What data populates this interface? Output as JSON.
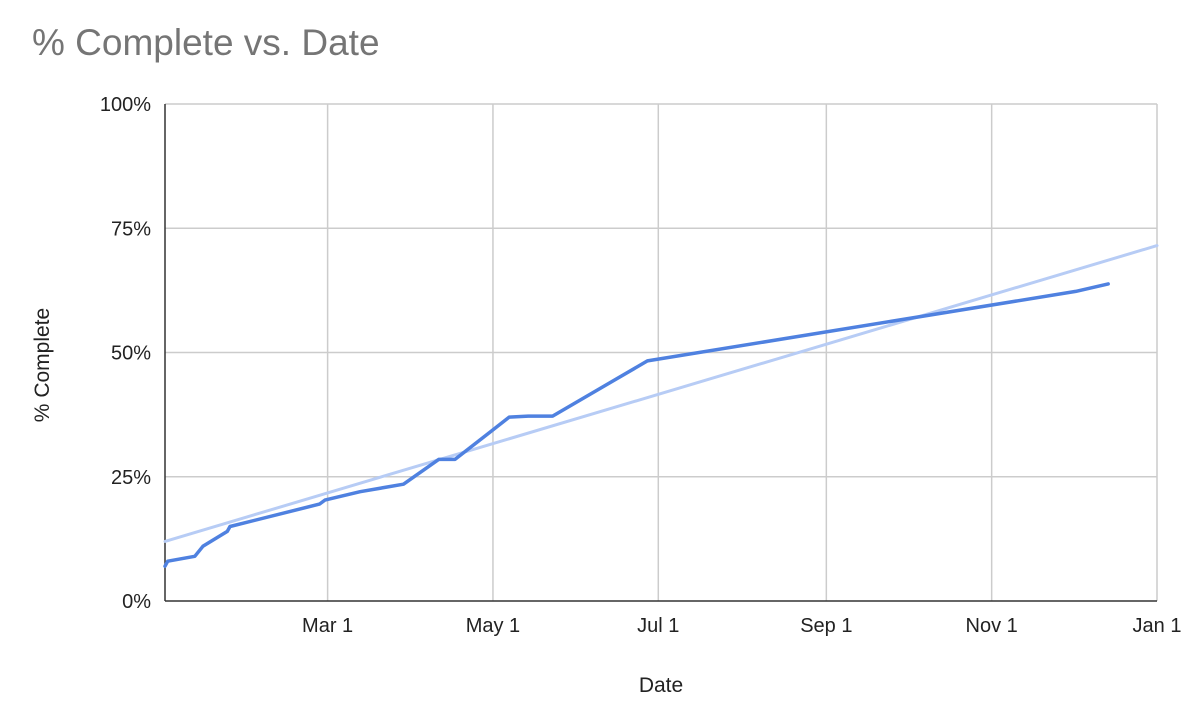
{
  "chart_data": {
    "type": "line",
    "title": "% Complete vs. Date",
    "xlabel": "Date",
    "ylabel": "% Complete",
    "x_ticks": [
      "Mar 1",
      "May 1",
      "Jul 1",
      "Sep 1",
      "Nov 1",
      "Jan 1"
    ],
    "y_ticks": [
      "0%",
      "25%",
      "50%",
      "75%",
      "100%"
    ],
    "xlim": [
      "2024-01-01",
      "2025-01-01"
    ],
    "ylim": [
      0,
      100
    ],
    "grid": true,
    "legend": "none",
    "series": [
      {
        "color": "#4f81e0",
        "points": [
          {
            "x": "2024-01-01",
            "y": 7
          },
          {
            "x": "2024-01-02",
            "y": 8
          },
          {
            "x": "2024-01-12",
            "y": 9
          },
          {
            "x": "2024-01-15",
            "y": 11
          },
          {
            "x": "2024-01-24",
            "y": 14
          },
          {
            "x": "2024-01-25",
            "y": 15
          },
          {
            "x": "2024-02-27",
            "y": 19.5
          },
          {
            "x": "2024-02-29",
            "y": 20.3
          },
          {
            "x": "2024-03-13",
            "y": 22
          },
          {
            "x": "2024-03-29",
            "y": 23.5
          },
          {
            "x": "2024-04-11",
            "y": 28.5
          },
          {
            "x": "2024-04-17",
            "y": 28.5
          },
          {
            "x": "2024-04-30",
            "y": 34
          },
          {
            "x": "2024-05-07",
            "y": 37
          },
          {
            "x": "2024-05-14",
            "y": 37.2
          },
          {
            "x": "2024-05-23",
            "y": 37.2
          },
          {
            "x": "2024-06-27",
            "y": 48.3
          },
          {
            "x": "2024-12-02",
            "y": 62.3
          },
          {
            "x": "2024-12-14",
            "y": 63.8
          }
        ]
      },
      {
        "color": "#b7ccf5",
        "points": [
          {
            "x": "2024-01-01",
            "y": 12
          },
          {
            "x": "2025-01-01",
            "y": 71.5
          }
        ]
      }
    ]
  }
}
